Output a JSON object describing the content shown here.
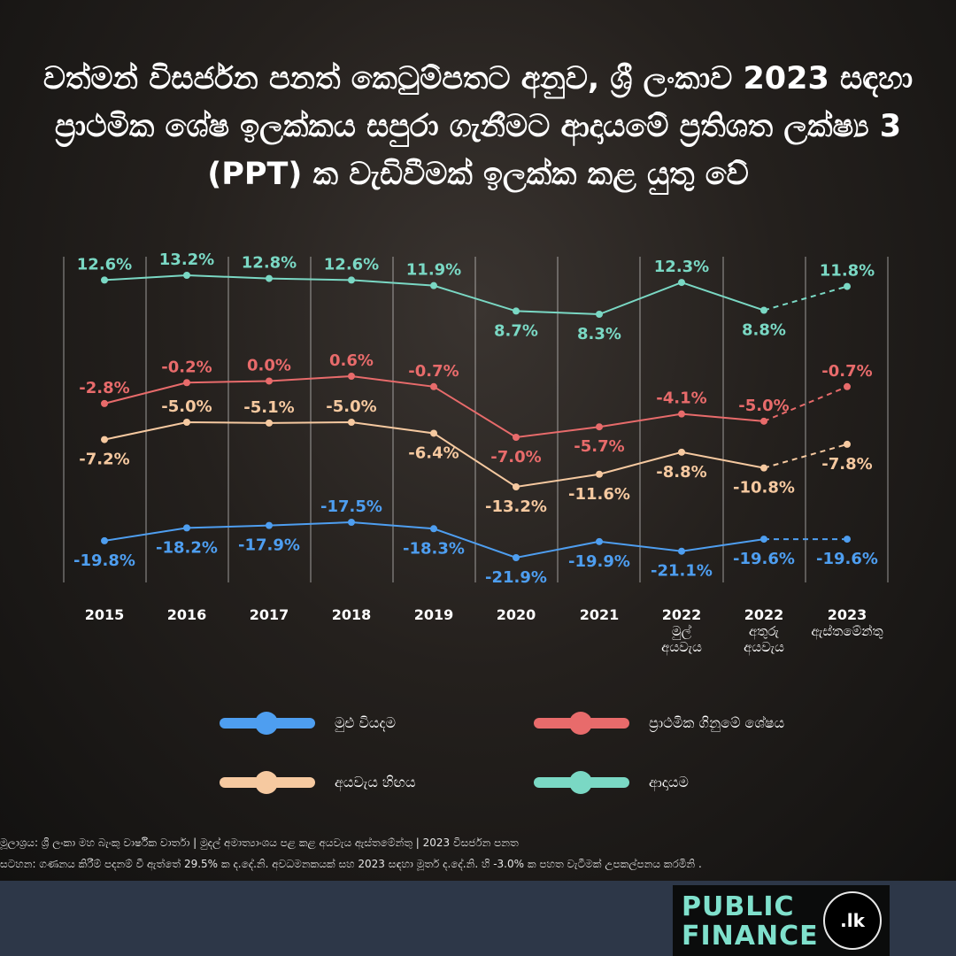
{
  "title": "වත්මන් විසර්ජන පනත් කෙටුම්පතට අනුව, ශ්‍රී ලංකාව 2023 සඳහා ප්‍රාථමික ශේෂ ඉලක්කය සපුරා ගැනීමට ආදායමේ ප්‍රතිශත ලක්ෂ්‍ය 3 (PPT) ක වැඩිවීමක් ඉලක්ක කළ යුතු වේ",
  "chart_data": {
    "type": "line",
    "categories": [
      "2015",
      "2016",
      "2017",
      "2018",
      "2019",
      "2020",
      "2021",
      "2022 මුල් අයවැය",
      "2022 අතුරු අයවැය",
      "2023 ඇස්තමේන්තු"
    ],
    "series": [
      {
        "key": "revenue",
        "name": "ආදායම",
        "color": "#7ad8c4",
        "values": [
          12.6,
          13.2,
          12.8,
          12.6,
          11.9,
          8.7,
          8.3,
          12.3,
          8.8,
          11.8
        ],
        "labels": [
          "12.6%",
          "13.2%",
          "12.8%",
          "12.6%",
          "11.9%",
          "8.7%",
          "8.3%",
          "12.3%",
          "8.8%",
          "11.8%"
        ]
      },
      {
        "key": "primary",
        "name": "ප්‍රාථමික ගිනුමේ ශේෂය",
        "color": "#e86b6b",
        "values": [
          -2.8,
          -0.2,
          0.0,
          0.6,
          -0.7,
          -7.0,
          -5.7,
          -4.1,
          -5.0,
          -0.7
        ],
        "labels": [
          "-2.8%",
          "-0.2%",
          "0.0%",
          "0.6%",
          "-0.7%",
          "-7.0%",
          "-5.7%",
          "-4.1%",
          "-5.0%",
          "-0.7%"
        ]
      },
      {
        "key": "deficit",
        "name": "අයවැය හිඟය",
        "color": "#f6c9a0",
        "values": [
          -7.2,
          -5.0,
          -5.1,
          -5.0,
          -6.4,
          -13.2,
          -11.6,
          -8.8,
          -10.8,
          -7.8
        ],
        "labels": [
          "-7.2%",
          "-5.0%",
          "-5.1%",
          "-5.0%",
          "-6.4%",
          "-13.2%",
          "-11.6%",
          "-8.8%",
          "-10.8%",
          "-7.8%"
        ]
      },
      {
        "key": "expenditure",
        "name": "මුළු වියදම",
        "color": "#4e9ef0",
        "values": [
          -19.8,
          -18.2,
          -17.9,
          -17.5,
          -18.3,
          -21.9,
          -19.9,
          -21.1,
          -19.6,
          -19.6
        ],
        "labels": [
          "-19.8%",
          "-18.2%",
          "-17.9%",
          "-17.5%",
          "-18.3%",
          "-21.9%",
          "-19.9%",
          "-21.1%",
          "-19.6%",
          "-19.6%"
        ]
      }
    ],
    "projected_segment": "2022 අතුරු අයවැය → 2023 ඇස්තමේන්තු (dashed)",
    "grid": "vertical lines per category",
    "legend": "bottom"
  },
  "legend": [
    {
      "label": "මුළු වියදම",
      "color": "#4e9ef0"
    },
    {
      "label": "ප්‍රාථමික ගිනුමේ ශේෂය",
      "color": "#e86b6b"
    },
    {
      "label": "අයවැය හිඟය",
      "color": "#f6c9a0"
    },
    {
      "label": "ආදායම",
      "color": "#7ad8c4"
    }
  ],
  "footer": {
    "source": "මූලාශ්‍රය: ශ්‍රී ලංකා මහ බැංකු වාර්ෂික වාර්තා | මුදල් අමාත්‍යාංශය පළ කළ අයවැය ඇස්තමේන්තු | 2023 විසර්ජන පනත",
    "note": "සටහන: ගණනය කිරීම් පදනම් වී ඇත්තේ 29.5% ක ද.දේ.නි. අවධමනකයක් සහ 2023 සඳහා මූර්ත ද.දේ.නි. හි -3.0% ක පහත වැටීමක් උපකල්පනය කරමිනි ."
  },
  "logo": {
    "line1": "PUBLIC",
    "line2": "FINANCE",
    "badge": ".lk"
  }
}
